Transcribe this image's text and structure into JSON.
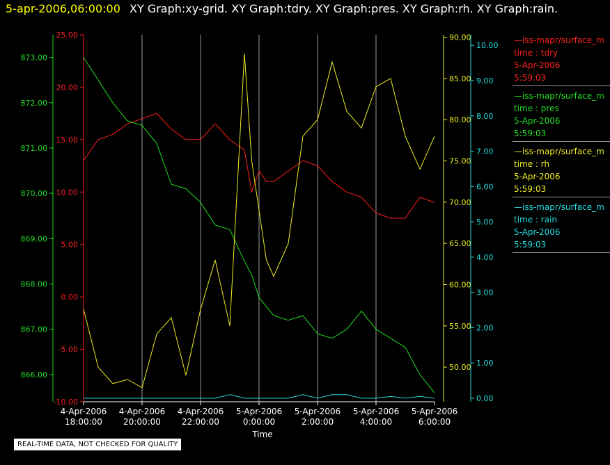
{
  "header": {
    "timestamp": "5-apr-2006,06:00:00",
    "titles": "XY Graph:xy-grid.  XY Graph:tdry.  XY Graph:pres.  XY Graph:rh.  XY Graph:rain."
  },
  "notice": "REAL-TIME DATA, NOT CHECKED FOR QUALITY",
  "legend": [
    {
      "source": "—iss-mapr/surface_m",
      "field": "time : tdry",
      "date": "5-Apr-2006",
      "time": "5:59:03",
      "color": "#ff2020"
    },
    {
      "source": "—iss-mapr/surface_m",
      "field": "time : pres",
      "date": "5-Apr-2006",
      "time": "5:59:03",
      "color": "#22dd22"
    },
    {
      "source": "—iss-mapr/surface_m",
      "field": "time : rh",
      "date": "5-Apr-2006",
      "time": "5:59:03",
      "color": "#eeee22"
    },
    {
      "source": "—iss-mapr/surface_m",
      "field": "time : rain",
      "date": "5-Apr-2006",
      "time": "5:59:03",
      "color": "#22dddd"
    }
  ],
  "chart_data": {
    "type": "line",
    "xlabel": "Time",
    "x_ticks": [
      {
        "date": "4-Apr-2006",
        "time": "18:00:00"
      },
      {
        "date": "4-Apr-2006",
        "time": "20:00:00"
      },
      {
        "date": "4-Apr-2006",
        "time": "22:00:00"
      },
      {
        "date": "5-Apr-2006",
        "time": "0:00:00"
      },
      {
        "date": "5-Apr-2006",
        "time": "2:00:00"
      },
      {
        "date": "5-Apr-2006",
        "time": "4:00:00"
      },
      {
        "date": "5-Apr-2006",
        "time": "6:00:00"
      }
    ],
    "x_range": [
      "4-Apr-2006 18:00:00",
      "5-Apr-2006 6:00:00"
    ],
    "x_hours": [
      0,
      0.5,
      1,
      1.5,
      2,
      2.5,
      3,
      3.5,
      4,
      4.5,
      5,
      5.5,
      5.75,
      6,
      6.25,
      6.5,
      7,
      7.5,
      8,
      8.5,
      9,
      9.5,
      10,
      10.5,
      11,
      11.5,
      12
    ],
    "grid": "vertical",
    "axes": [
      {
        "id": "tdry",
        "color": "#ff2020",
        "range": [
          -10,
          25
        ],
        "ticks": [
          "-10.00",
          "-5.00",
          "0.00",
          "5.00",
          "10.00",
          "15.00",
          "20.00",
          "25.00"
        ]
      },
      {
        "id": "pres",
        "color": "#22dd22",
        "range": [
          865.4,
          873.5
        ],
        "ticks": [
          "866.00",
          "867.00",
          "868.00",
          "869.00",
          "870.00",
          "871.00",
          "872.00",
          "873.00"
        ]
      },
      {
        "id": "rh",
        "color": "#eeee22",
        "range": [
          45.8,
          90.3
        ],
        "ticks": [
          "50.00",
          "55.00",
          "60.00",
          "65.00",
          "70.00",
          "75.00",
          "80.00",
          "85.00",
          "90.00"
        ]
      },
      {
        "id": "rain",
        "color": "#22dddd",
        "range": [
          -0.1,
          10.3
        ],
        "ticks": [
          "0.00",
          "1.00",
          "2.00",
          "3.00",
          "4.00",
          "5.00",
          "6.00",
          "7.00",
          "8.00",
          "9.00",
          "10.00"
        ]
      }
    ],
    "series": [
      {
        "axis": "tdry",
        "color": "#ff2020",
        "values": [
          13,
          15,
          15.5,
          16.5,
          17,
          17.5,
          16,
          15,
          15,
          16.5,
          15,
          14,
          10,
          12,
          11,
          11,
          12,
          13,
          12.5,
          11,
          10,
          9.5,
          8,
          7.5,
          7.5,
          9.5,
          9
        ]
      },
      {
        "axis": "pres",
        "color": "#22dd22",
        "values": [
          873,
          872.5,
          872,
          871.6,
          871.5,
          871.1,
          870.2,
          870.1,
          869.8,
          869.3,
          869.2,
          868.5,
          868.2,
          867.7,
          867.5,
          867.3,
          867.2,
          867.3,
          866.9,
          866.8,
          867,
          867.4,
          867,
          866.8,
          866.6,
          866,
          865.6
        ]
      },
      {
        "axis": "rh",
        "color": "#eeee22",
        "values": [
          57,
          50,
          48,
          48.5,
          47.5,
          54,
          56,
          49,
          57,
          63,
          55,
          88,
          75,
          69,
          63,
          61,
          65,
          78,
          80,
          87,
          81,
          79,
          84,
          85,
          78,
          74,
          78
        ]
      },
      {
        "axis": "rain",
        "color": "#22dddd",
        "values": [
          0,
          0,
          0,
          0,
          0,
          0,
          0,
          0,
          0,
          0,
          0.1,
          0,
          0,
          0,
          0,
          0,
          0,
          0.1,
          0,
          0.1,
          0.1,
          0,
          0,
          0.05,
          0,
          0.05,
          0
        ]
      }
    ]
  }
}
